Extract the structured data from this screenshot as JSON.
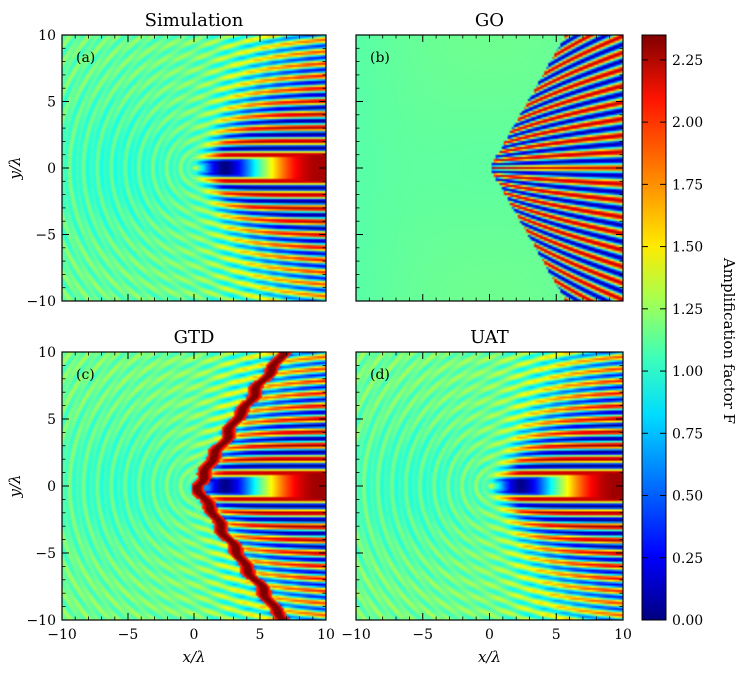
{
  "chart_data": [
    {
      "type": "heatmap",
      "panel": "(a)",
      "title": "Simulation",
      "model": "simulation",
      "xlabel": "x/λ",
      "ylabel": "y/λ",
      "xlim": [
        -10,
        10
      ],
      "ylim": [
        -10,
        10
      ],
      "xticks": [
        "−10",
        "−5",
        "0",
        "5",
        "10"
      ],
      "yticks": [
        "−10",
        "−5",
        "0",
        "5",
        "10"
      ],
      "show_xlabel": false,
      "show_ylabel": true
    },
    {
      "type": "heatmap",
      "panel": "(b)",
      "title": "GO",
      "model": "go",
      "xlabel": "x/λ",
      "ylabel": "y/λ",
      "xlim": [
        -10,
        10
      ],
      "ylim": [
        -10,
        10
      ],
      "xticks": [
        "−10",
        "−5",
        "0",
        "5",
        "10"
      ],
      "yticks": [
        "−10",
        "−5",
        "0",
        "5",
        "10"
      ],
      "show_xlabel": false,
      "show_ylabel": false
    },
    {
      "type": "heatmap",
      "panel": "(c)",
      "title": "GTD",
      "model": "gtd",
      "xlabel": "x/λ",
      "ylabel": "y/λ",
      "xlim": [
        -10,
        10
      ],
      "ylim": [
        -10,
        10
      ],
      "xticks": [
        "−10",
        "−5",
        "0",
        "5",
        "10"
      ],
      "yticks": [
        "−10",
        "−5",
        "0",
        "5",
        "10"
      ],
      "show_xlabel": true,
      "show_ylabel": true
    },
    {
      "type": "heatmap",
      "panel": "(d)",
      "title": "UAT",
      "model": "uat",
      "xlabel": "x/λ",
      "ylabel": "y/λ",
      "xlim": [
        -10,
        10
      ],
      "ylim": [
        -10,
        10
      ],
      "xticks": [
        "−10",
        "−5",
        "0",
        "5",
        "10"
      ],
      "yticks": [
        "−10",
        "−5",
        "0",
        "5",
        "10"
      ],
      "show_xlabel": true,
      "show_ylabel": false
    }
  ],
  "colorbar": {
    "label": "Amplification factor F",
    "range": [
      0.0,
      2.35
    ],
    "ticks": [
      0.0,
      0.25,
      0.5,
      0.75,
      1.0,
      1.25,
      1.5,
      1.75,
      2.0,
      2.25
    ],
    "tick_labels": [
      "0.00",
      "0.25",
      "0.50",
      "0.75",
      "1.00",
      "1.25",
      "1.50",
      "1.75",
      "2.00",
      "2.25"
    ]
  }
}
